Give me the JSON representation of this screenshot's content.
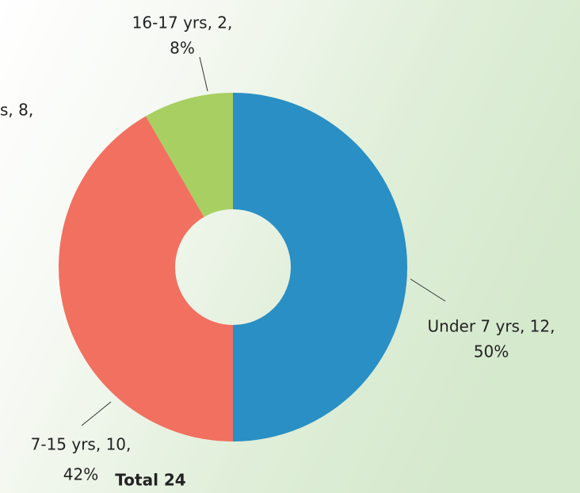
{
  "chart_data": {
    "type": "pie",
    "categories": [
      "Under 7 yrs",
      "7-15 yrs",
      "16-17 yrs"
    ],
    "values": [
      12,
      10,
      2
    ],
    "value_labels": [
      [
        "Under 7 yrs, 12,",
        "50%"
      ],
      [
        "7-15 yrs, 10,",
        "42%"
      ],
      [
        "16-17 yrs, 2,",
        "8%"
      ]
    ],
    "colors": [
      "#2a8fc4",
      "#f2705f",
      "#a8cf62"
    ],
    "annotations": [
      "s, 8,"
    ],
    "footer": "Total 24"
  }
}
